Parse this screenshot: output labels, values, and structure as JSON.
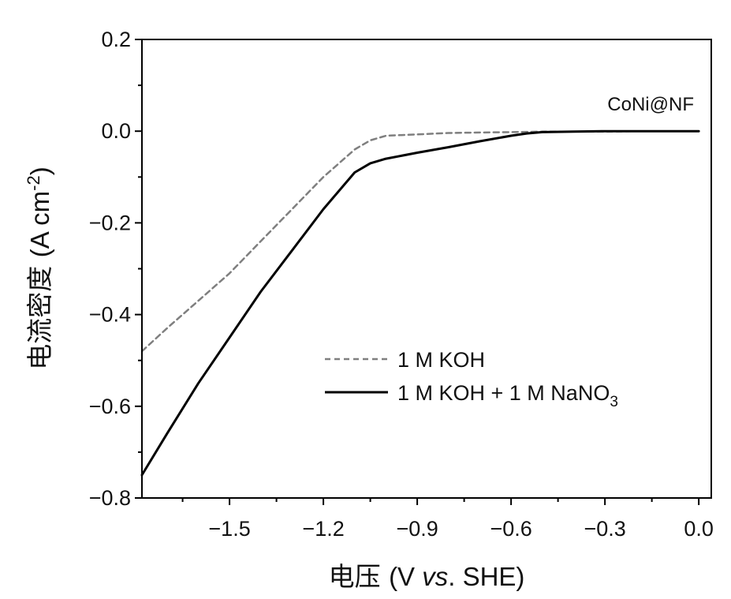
{
  "chart_data": {
    "type": "line",
    "annotation": "CoNi@NF",
    "xlabel": {
      "cn": "电压",
      "rest": "(V ",
      "italic": "vs",
      "tail": ". SHE)"
    },
    "ylabel": {
      "cn": "电流密度",
      "rest": "(A cm",
      "sup": "-2",
      "tail": ")"
    },
    "xlim": [
      -1.78,
      0.04
    ],
    "ylim": [
      -0.8,
      0.2
    ],
    "xticks": [
      -1.5,
      -1.2,
      -0.9,
      -0.6,
      -0.3,
      0.0
    ],
    "xtick_labels": [
      "−1.5",
      "−1.2",
      "−0.9",
      "−0.6",
      "−0.3",
      "0.0"
    ],
    "yticks": [
      -0.8,
      -0.6,
      -0.4,
      -0.2,
      0.0,
      0.2
    ],
    "ytick_labels": [
      "−0.8",
      "−0.6",
      "−0.4",
      "−0.2",
      "0.0",
      "0.2"
    ],
    "grid": false,
    "legend_position": "lower-right",
    "series": [
      {
        "name": "1 M KOH",
        "name_sub": "",
        "style": "dashed",
        "color": "#7f7f7f",
        "x": [
          -1.78,
          -1.7,
          -1.6,
          -1.5,
          -1.4,
          -1.3,
          -1.2,
          -1.1,
          -1.05,
          -1.0,
          -0.9,
          -0.8,
          -0.7,
          -0.6,
          -0.5,
          -0.4,
          -0.3,
          -0.2,
          -0.1,
          0.0
        ],
        "y": [
          -0.48,
          -0.43,
          -0.37,
          -0.31,
          -0.24,
          -0.17,
          -0.1,
          -0.04,
          -0.02,
          -0.01,
          -0.007,
          -0.004,
          -0.003,
          -0.002,
          -0.001,
          -0.001,
          -0.001,
          0.0,
          0.0,
          0.0
        ]
      },
      {
        "name": "1 M KOH + 1 M NaNO",
        "name_sub": "3",
        "style": "solid",
        "color": "#000000",
        "x": [
          -1.78,
          -1.7,
          -1.6,
          -1.5,
          -1.4,
          -1.3,
          -1.2,
          -1.1,
          -1.05,
          -1.0,
          -0.9,
          -0.8,
          -0.7,
          -0.6,
          -0.55,
          -0.5,
          -0.4,
          -0.3,
          -0.2,
          -0.1,
          0.0
        ],
        "y": [
          -0.75,
          -0.66,
          -0.55,
          -0.45,
          -0.35,
          -0.26,
          -0.17,
          -0.09,
          -0.07,
          -0.06,
          -0.047,
          -0.035,
          -0.022,
          -0.01,
          -0.005,
          -0.002,
          -0.001,
          0.0,
          0.0,
          0.0,
          0.0
        ]
      }
    ]
  }
}
